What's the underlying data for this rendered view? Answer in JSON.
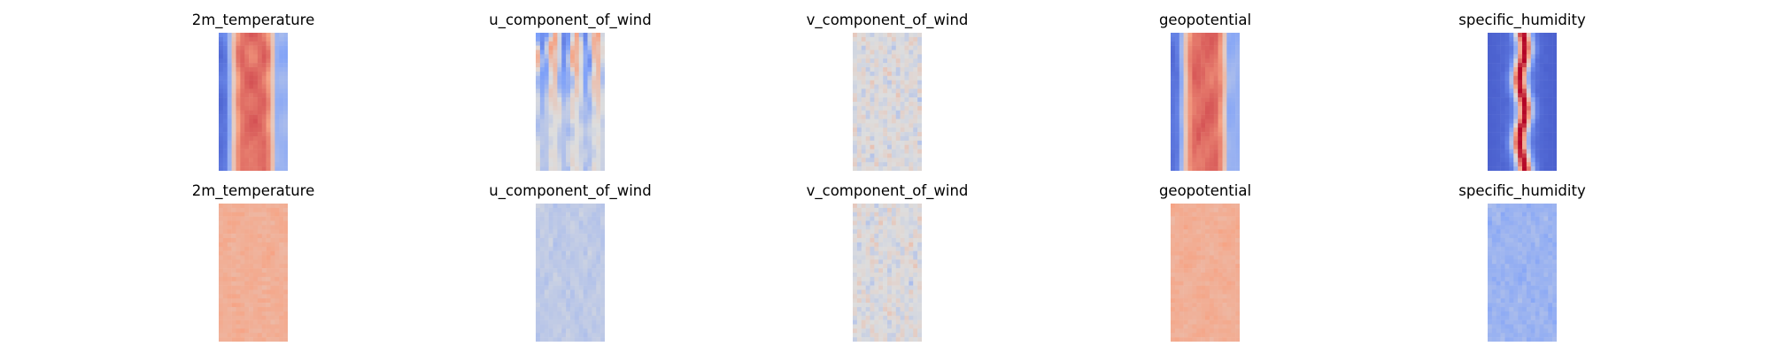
{
  "chart_data": {
    "type": "heatmap",
    "colormap": "coolwarm",
    "axes": "off",
    "grid": false,
    "layout": {
      "rows": 2,
      "cols": 5
    },
    "panels": [
      {
        "row": 0,
        "col": 0,
        "title": "2m_temperature",
        "pattern": "warm-band"
      },
      {
        "row": 0,
        "col": 1,
        "title": "u_component_of_wind",
        "pattern": "streaks"
      },
      {
        "row": 0,
        "col": 2,
        "title": "v_component_of_wind",
        "pattern": "turbulent"
      },
      {
        "row": 0,
        "col": 3,
        "title": "geopotential",
        "pattern": "warm-band"
      },
      {
        "row": 0,
        "col": 4,
        "title": "specific_humidity",
        "pattern": "central-plume"
      },
      {
        "row": 1,
        "col": 0,
        "title": "2m_temperature",
        "pattern": "warm-noise"
      },
      {
        "row": 1,
        "col": 1,
        "title": "u_component_of_wind",
        "pattern": "pale-noise"
      },
      {
        "row": 1,
        "col": 2,
        "title": "v_component_of_wind",
        "pattern": "turbulent"
      },
      {
        "row": 1,
        "col": 3,
        "title": "geopotential",
        "pattern": "warm-noise"
      },
      {
        "row": 1,
        "col": 4,
        "title": "specific_humidity",
        "pattern": "cool-noise"
      }
    ]
  }
}
